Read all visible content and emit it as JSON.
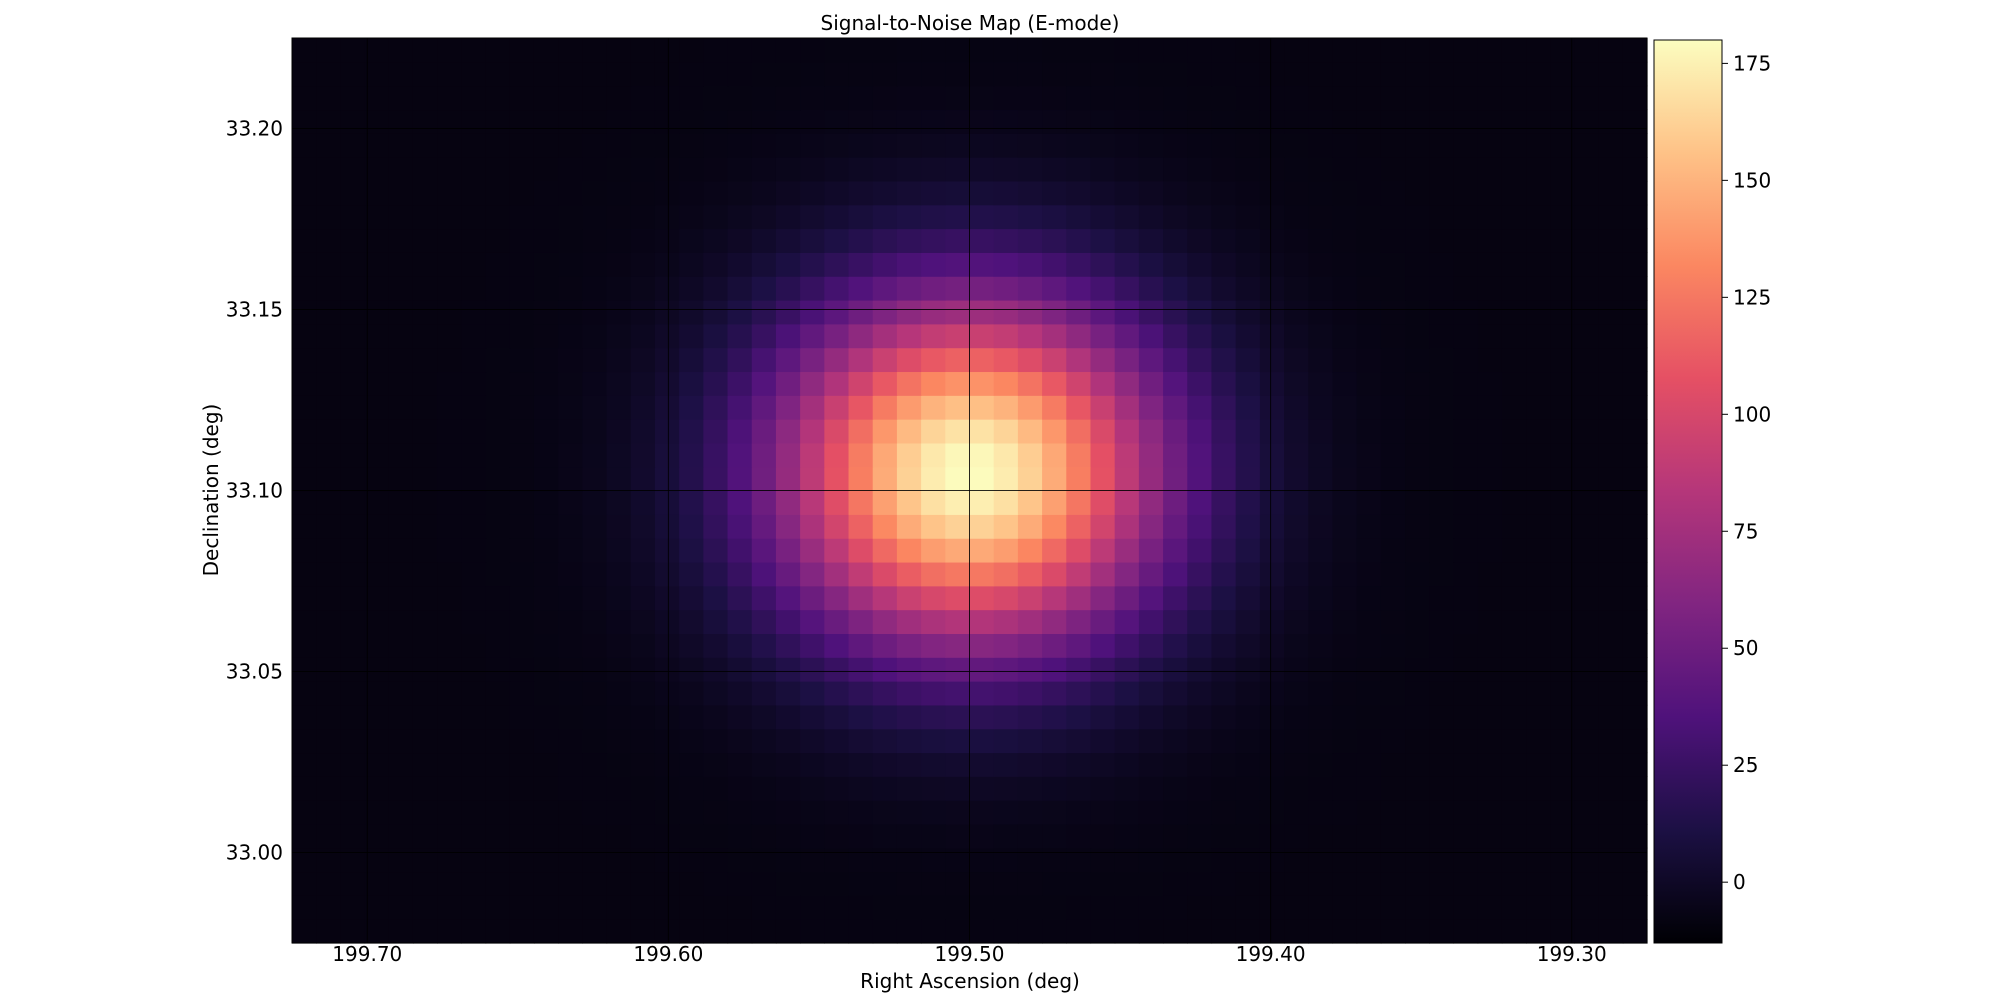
{
  "chart_data": {
    "type": "heatmap",
    "title": "Signal-to-Noise Map (E-mode)",
    "xlabel": "Right Ascension (deg)",
    "ylabel": "Declination (deg)",
    "x_ticks": [
      "199.70",
      "199.60",
      "199.50",
      "199.40",
      "199.30"
    ],
    "y_ticks": [
      "33.20",
      "33.15",
      "33.10",
      "33.05",
      "33.00"
    ],
    "x_tick_values": [
      199.7,
      199.6,
      199.5,
      199.4,
      199.3
    ],
    "y_tick_values": [
      33.2,
      33.15,
      33.1,
      33.05,
      33.0
    ],
    "xlim": [
      199.725,
      199.275
    ],
    "ylim": [
      32.975,
      33.225
    ],
    "x_reversed": true,
    "grid": true,
    "grid_color": "#000000",
    "colormap": "magma",
    "colorbar": {
      "range": [
        -13,
        180
      ],
      "ticks": [
        "0",
        "25",
        "50",
        "75",
        "100",
        "125",
        "150",
        "175"
      ],
      "tick_values": [
        0,
        25,
        50,
        75,
        100,
        125,
        150,
        175
      ],
      "placement": "right"
    },
    "peak": {
      "ra": 199.5,
      "dec": 33.105,
      "value": 180
    },
    "background_value": -8,
    "grid_cells": {
      "nx": 56,
      "ny": 38
    }
  }
}
